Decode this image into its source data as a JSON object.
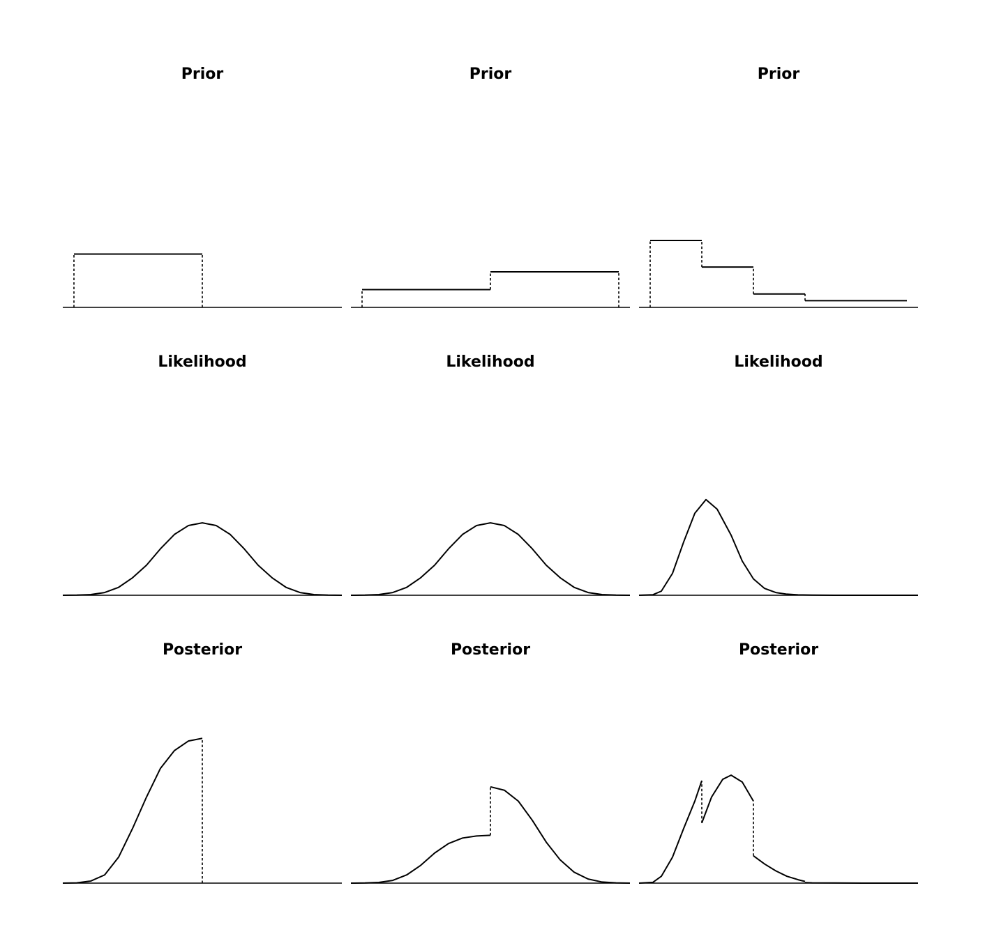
{
  "figure": {
    "line_color": "#000000",
    "background": "#ffffff"
  },
  "chart_data": [
    {
      "type": "line",
      "title": "Prior",
      "xlabel": "",
      "ylabel": "",
      "xlim": [
        0,
        1
      ],
      "ylim": [
        0,
        1
      ],
      "grid": false,
      "axes_visible": false,
      "series": [
        {
          "values": {
            "x": [
              0.04,
              0.5
            ],
            "y": [
              0.39,
              0.39
            ]
          },
          "style": "solid"
        },
        {
          "values": {
            "x": [
              0.04,
              0.04
            ],
            "y": [
              0,
              0.39
            ]
          },
          "style": "dashed"
        },
        {
          "values": {
            "x": [
              0.5,
              0.5
            ],
            "y": [
              0,
              0.39
            ]
          },
          "style": "dashed"
        }
      ]
    },
    {
      "type": "line",
      "title": "Prior",
      "xlabel": "",
      "ylabel": "",
      "xlim": [
        0,
        1
      ],
      "ylim": [
        0,
        1
      ],
      "grid": false,
      "axes_visible": false,
      "series": [
        {
          "values": {
            "x": [
              0.04,
              0.5
            ],
            "y": [
              0.13,
              0.13
            ]
          },
          "style": "solid"
        },
        {
          "values": {
            "x": [
              0.5,
              0.96
            ],
            "y": [
              0.26,
              0.26
            ]
          },
          "style": "solid"
        },
        {
          "values": {
            "x": [
              0.04,
              0.04
            ],
            "y": [
              0,
              0.13
            ]
          },
          "style": "dashed"
        },
        {
          "values": {
            "x": [
              0.5,
              0.5
            ],
            "y": [
              0.13,
              0.26
            ]
          },
          "style": "dashed"
        },
        {
          "values": {
            "x": [
              0.96,
              0.96
            ],
            "y": [
              0,
              0.26
            ]
          },
          "style": "dashed"
        }
      ]
    },
    {
      "type": "line",
      "title": "Prior",
      "xlabel": "",
      "ylabel": "",
      "xlim": [
        0,
        1
      ],
      "ylim": [
        0,
        1
      ],
      "grid": false,
      "axes_visible": false,
      "series": [
        {
          "values": {
            "x": [
              0.04,
              0.225
            ],
            "y": [
              0.49,
              0.49
            ]
          },
          "style": "solid"
        },
        {
          "values": {
            "x": [
              0.225,
              0.41
            ],
            "y": [
              0.295,
              0.295
            ]
          },
          "style": "solid"
        },
        {
          "values": {
            "x": [
              0.41,
              0.595
            ],
            "y": [
              0.098,
              0.098
            ]
          },
          "style": "solid"
        },
        {
          "values": {
            "x": [
              0.595,
              0.96
            ],
            "y": [
              0.049,
              0.049
            ]
          },
          "style": "solid"
        },
        {
          "values": {
            "x": [
              0.04,
              0.04
            ],
            "y": [
              0,
              0.49
            ]
          },
          "style": "dashed"
        },
        {
          "values": {
            "x": [
              0.225,
              0.225
            ],
            "y": [
              0.295,
              0.49
            ]
          },
          "style": "dashed"
        },
        {
          "values": {
            "x": [
              0.41,
              0.41
            ],
            "y": [
              0.098,
              0.295
            ]
          },
          "style": "dashed"
        },
        {
          "values": {
            "x": [
              0.595,
              0.595
            ],
            "y": [
              0.049,
              0.098
            ]
          },
          "style": "dashed"
        }
      ]
    },
    {
      "type": "line",
      "title": "Likelihood",
      "xlabel": "",
      "ylabel": "",
      "xlim": [
        0,
        1
      ],
      "ylim": [
        0,
        1
      ],
      "grid": false,
      "axes_visible": false,
      "series": [
        {
          "values": {
            "x": [
              0,
              0.05,
              0.1,
              0.15,
              0.2,
              0.25,
              0.3,
              0.35,
              0.4,
              0.45,
              0.5,
              0.55,
              0.6,
              0.65,
              0.7,
              0.75,
              0.8,
              0.85,
              0.9,
              0.95,
              1
            ],
            "y": [
              0,
              0.001,
              0.005,
              0.02,
              0.058,
              0.128,
              0.22,
              0.34,
              0.445,
              0.51,
              0.53,
              0.51,
              0.445,
              0.34,
              0.22,
              0.128,
              0.058,
              0.02,
              0.005,
              0.001,
              0
            ]
          },
          "style": "solid"
        }
      ]
    },
    {
      "type": "line",
      "title": "Likelihood",
      "xlabel": "",
      "ylabel": "",
      "xlim": [
        0,
        1
      ],
      "ylim": [
        0,
        1
      ],
      "grid": false,
      "axes_visible": false,
      "series": [
        {
          "values": {
            "x": [
              0,
              0.05,
              0.1,
              0.15,
              0.2,
              0.25,
              0.3,
              0.35,
              0.4,
              0.45,
              0.5,
              0.55,
              0.6,
              0.65,
              0.7,
              0.75,
              0.8,
              0.85,
              0.9,
              0.95,
              1
            ],
            "y": [
              0,
              0.001,
              0.005,
              0.02,
              0.058,
              0.128,
              0.22,
              0.34,
              0.445,
              0.51,
              0.53,
              0.51,
              0.445,
              0.34,
              0.22,
              0.128,
              0.058,
              0.02,
              0.005,
              0.001,
              0
            ]
          },
          "style": "solid"
        }
      ]
    },
    {
      "type": "line",
      "title": "Likelihood",
      "xlabel": "",
      "ylabel": "",
      "xlim": [
        0,
        1
      ],
      "ylim": [
        0,
        1
      ],
      "grid": false,
      "axes_visible": false,
      "series": [
        {
          "values": {
            "x": [
              0,
              0.05,
              0.08,
              0.12,
              0.16,
              0.2,
              0.24,
              0.28,
              0.33,
              0.37,
              0.41,
              0.45,
              0.49,
              0.53,
              0.57,
              0.62,
              0.7,
              0.8,
              1
            ],
            "y": [
              0,
              0.004,
              0.03,
              0.16,
              0.39,
              0.6,
              0.7,
              0.63,
              0.44,
              0.25,
              0.12,
              0.05,
              0.02,
              0.008,
              0.003,
              0.001,
              0,
              0,
              0
            ]
          },
          "style": "solid"
        }
      ]
    },
    {
      "type": "line",
      "title": "Posterior",
      "xlabel": "",
      "ylabel": "",
      "xlim": [
        0,
        1
      ],
      "ylim": [
        0,
        1
      ],
      "grid": false,
      "axes_visible": false,
      "series": [
        {
          "values": {
            "x": [
              0,
              0.05,
              0.1,
              0.15,
              0.2,
              0.25,
              0.3,
              0.35,
              0.4,
              0.45,
              0.5
            ],
            "y": [
              0,
              0.002,
              0.015,
              0.06,
              0.19,
              0.4,
              0.63,
              0.84,
              0.97,
              1.04,
              1.06
            ]
          },
          "style": "solid"
        },
        {
          "values": {
            "x": [
              0.5,
              0.5
            ],
            "y": [
              0,
              1.06
            ]
          },
          "style": "dashed"
        }
      ]
    },
    {
      "type": "line",
      "title": "Posterior",
      "xlabel": "",
      "ylabel": "",
      "xlim": [
        0,
        1
      ],
      "ylim": [
        0,
        1
      ],
      "grid": false,
      "axes_visible": false,
      "series": [
        {
          "values": {
            "x": [
              0,
              0.05,
              0.1,
              0.15,
              0.2,
              0.25,
              0.3,
              0.35,
              0.4,
              0.45,
              0.5
            ],
            "y": [
              0,
              0.001,
              0.005,
              0.02,
              0.06,
              0.13,
              0.22,
              0.29,
              0.33,
              0.345,
              0.35
            ]
          },
          "style": "solid"
        },
        {
          "values": {
            "x": [
              0.5,
              0.55,
              0.6,
              0.65,
              0.7,
              0.75,
              0.8,
              0.85,
              0.9,
              0.95,
              1
            ],
            "y": [
              0.705,
              0.68,
              0.6,
              0.46,
              0.3,
              0.17,
              0.08,
              0.03,
              0.008,
              0.002,
              0
            ]
          },
          "style": "solid"
        },
        {
          "values": {
            "x": [
              0.5,
              0.5
            ],
            "y": [
              0.35,
              0.705
            ]
          },
          "style": "dashed"
        }
      ]
    },
    {
      "type": "line",
      "title": "Posterior",
      "xlabel": "",
      "ylabel": "",
      "xlim": [
        0,
        1
      ],
      "ylim": [
        0,
        1
      ],
      "grid": false,
      "axes_visible": false,
      "series": [
        {
          "values": {
            "x": [
              0,
              0.05,
              0.08,
              0.12,
              0.16,
              0.2,
              0.225
            ],
            "y": [
              0,
              0.006,
              0.05,
              0.19,
              0.4,
              0.6,
              0.75
            ]
          },
          "style": "solid"
        },
        {
          "values": {
            "x": [
              0.225,
              0.26,
              0.3,
              0.33,
              0.37,
              0.41
            ],
            "y": [
              0.44,
              0.63,
              0.76,
              0.79,
              0.74,
              0.6
            ]
          },
          "style": "solid"
        },
        {
          "values": {
            "x": [
              0.41,
              0.45,
              0.49,
              0.53,
              0.57,
              0.595
            ],
            "y": [
              0.2,
              0.14,
              0.09,
              0.05,
              0.025,
              0.012
            ]
          },
          "style": "solid"
        },
        {
          "values": {
            "x": [
              0.595,
              0.62,
              0.7,
              0.8,
              0.9,
              1
            ],
            "y": [
              0.004,
              0.002,
              0.001,
              0,
              0,
              0
            ]
          },
          "style": "solid"
        },
        {
          "values": {
            "x": [
              0.225,
              0.225
            ],
            "y": [
              0.44,
              0.75
            ]
          },
          "style": "dashed"
        },
        {
          "values": {
            "x": [
              0.41,
              0.41
            ],
            "y": [
              0.2,
              0.6
            ]
          },
          "style": "dashed"
        }
      ]
    }
  ]
}
